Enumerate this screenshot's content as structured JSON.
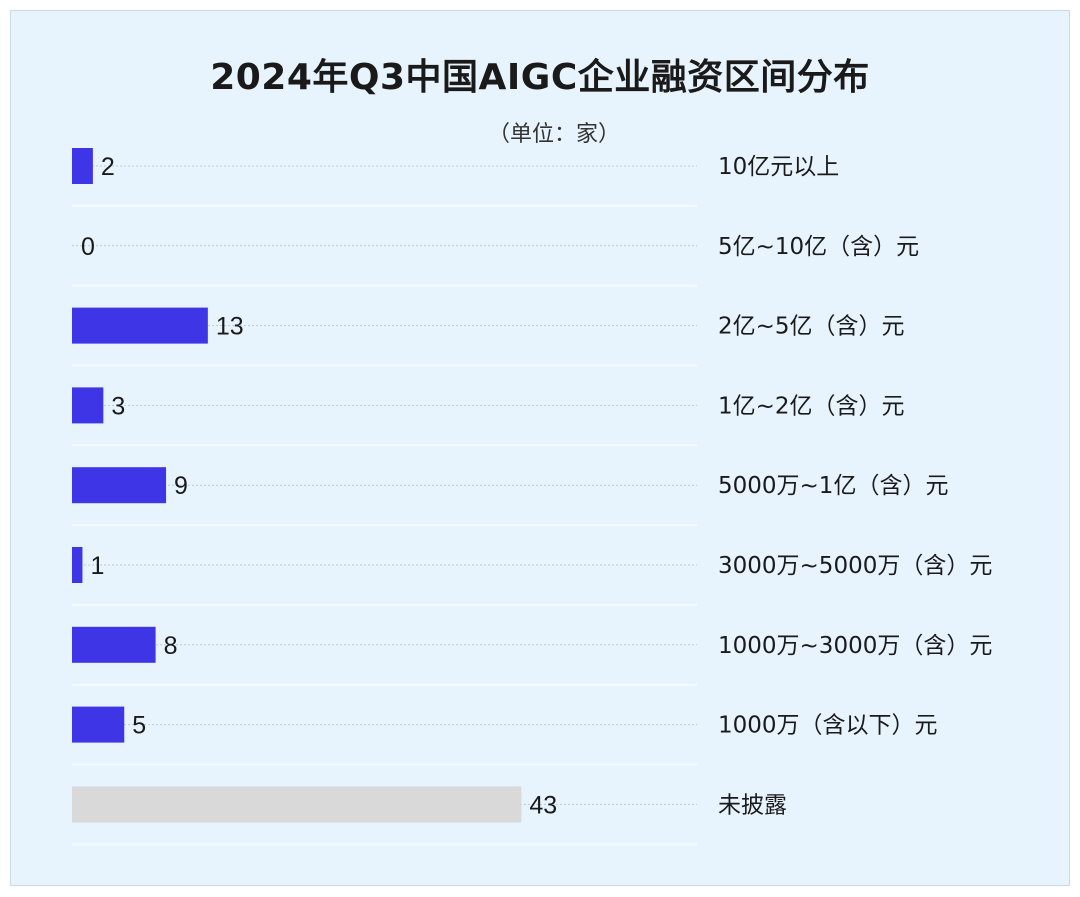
{
  "chart_data": {
    "type": "bar",
    "orientation": "horizontal",
    "title": "2024年Q3中国AIGC企业融资区间分布",
    "subtitle": "（单位：家）",
    "categories": [
      "10亿元以上",
      "5亿~10亿（含）元",
      "2亿~5亿（含）元",
      "1亿~2亿（含）元",
      "5000万~1亿（含）元",
      "3000万~5000万（含）元",
      "1000万~3000万（含）元",
      "1000万（含以下）元",
      "未披露"
    ],
    "values": [
      2,
      0,
      13,
      3,
      9,
      1,
      8,
      5,
      43
    ],
    "value_labels": [
      "2",
      "0",
      "13",
      "3",
      "9",
      "1",
      "8",
      "5",
      "43"
    ],
    "colors": [
      "#3d35e6",
      "#3d35e6",
      "#3d35e6",
      "#3d35e6",
      "#3d35e6",
      "#3d35e6",
      "#3d35e6",
      "#3d35e6",
      "#d9d9d9"
    ],
    "grid": true,
    "legend": "none"
  }
}
